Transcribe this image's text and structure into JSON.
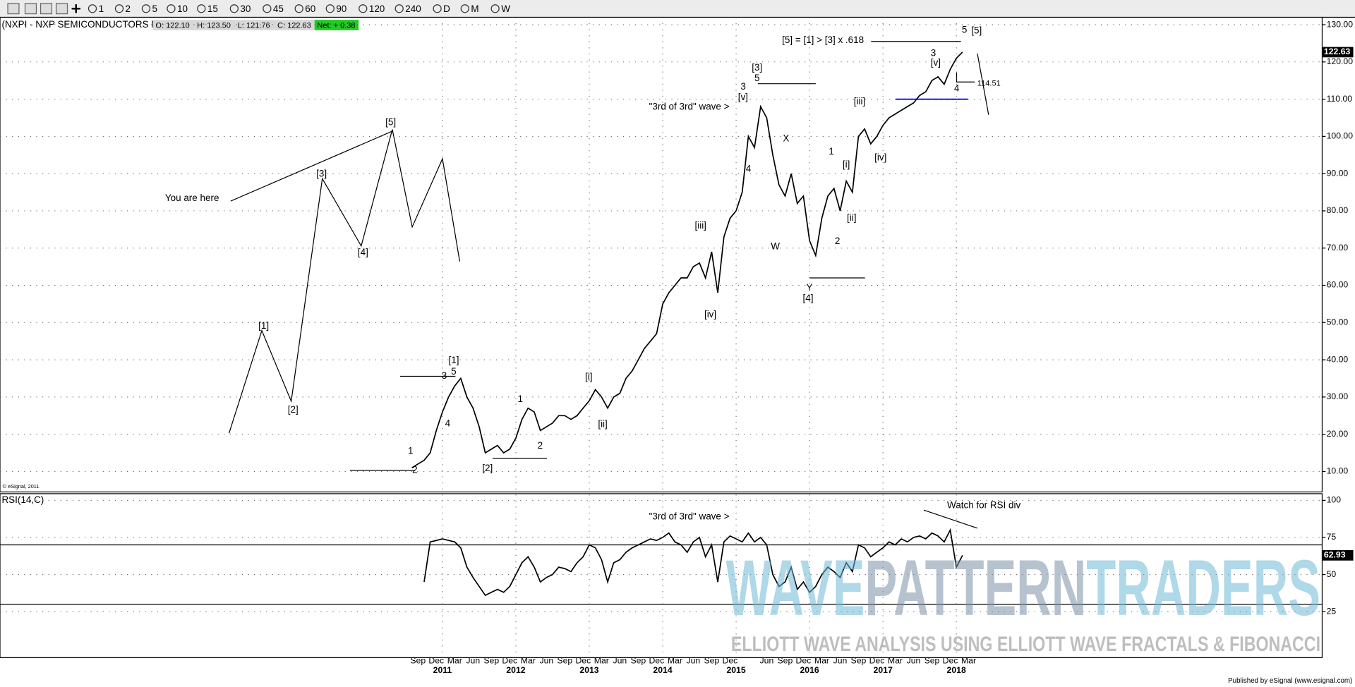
{
  "toolbar": {
    "intervals": [
      "1",
      "2",
      "5",
      "10",
      "15",
      "30",
      "45",
      "60",
      "90",
      "120",
      "240",
      "D",
      "M",
      "W"
    ]
  },
  "chart_data": [
    {
      "type": "line",
      "title": "(NXPI - NXP SEMICONDUCTORS N",
      "quote": [
        "O: 122.10",
        "H: 123.50",
        "L: 121.76",
        "C: 122.63"
      ],
      "net": "Net: + 0.38",
      "copyright": "© eSignal, 2011",
      "x": [
        "2010-08",
        "2010-09",
        "2010-10",
        "2010-11",
        "2010-12",
        "2011-01",
        "2011-02",
        "2011-03",
        "2011-04",
        "2011-05",
        "2011-06",
        "2011-07",
        "2011-08",
        "2011-09",
        "2011-10",
        "2011-11",
        "2011-12",
        "2012-01",
        "2012-02",
        "2012-03",
        "2012-04",
        "2012-05",
        "2012-06",
        "2012-07",
        "2012-08",
        "2012-09",
        "2012-10",
        "2012-11",
        "2012-12",
        "2013-01",
        "2013-02",
        "2013-03",
        "2013-04",
        "2013-05",
        "2013-06",
        "2013-07",
        "2013-08",
        "2013-09",
        "2013-10",
        "2013-11",
        "2013-12",
        "2014-01",
        "2014-02",
        "2014-03",
        "2014-04",
        "2014-05",
        "2014-06",
        "2014-07",
        "2014-08",
        "2014-09",
        "2014-10",
        "2014-11",
        "2014-12",
        "2015-01",
        "2015-02",
        "2015-03",
        "2015-04",
        "2015-05",
        "2015-06",
        "2015-07",
        "2015-08",
        "2015-09",
        "2015-10",
        "2015-11",
        "2015-12",
        "2016-01",
        "2016-02",
        "2016-03",
        "2016-04",
        "2016-05",
        "2016-06",
        "2016-07",
        "2016-08",
        "2016-09",
        "2016-10",
        "2016-11",
        "2016-12",
        "2017-01",
        "2017-02",
        "2017-03",
        "2017-04",
        "2017-05",
        "2017-06",
        "2017-07",
        "2017-08",
        "2017-09",
        "2017-10",
        "2017-11",
        "2017-12",
        "2018-01",
        "2018-02"
      ],
      "values": [
        11,
        12,
        13,
        15,
        21,
        26,
        30,
        33,
        35,
        30,
        27,
        22,
        15,
        16,
        17,
        15,
        16,
        19,
        24,
        27,
        26,
        21,
        22,
        23,
        25,
        25,
        24,
        25,
        27,
        29,
        32,
        30,
        27,
        30,
        31,
        35,
        37,
        40,
        43,
        45,
        47,
        55,
        58,
        60,
        62,
        62,
        65,
        66,
        62,
        69,
        58,
        73,
        78,
        80,
        85,
        100,
        97,
        108,
        105,
        95,
        87,
        84,
        90,
        82,
        84,
        72,
        68,
        78,
        84,
        86,
        80,
        88,
        85,
        100,
        102,
        98,
        100,
        103,
        105,
        106,
        107,
        108,
        109,
        111,
        112,
        115,
        116,
        114,
        118,
        121,
        122.63
      ],
      "color": "#000000",
      "last_label": "122.63",
      "ylim": [
        4.5,
        132
      ],
      "yticks": [
        {
          "value": 130,
          "label": "130.00"
        },
        {
          "value": 120,
          "label": "120.00"
        },
        {
          "value": 110,
          "label": "110.00"
        },
        {
          "value": 100,
          "label": "100.00"
        },
        {
          "value": 90,
          "label": "90.00"
        },
        {
          "value": 80,
          "label": "80.00"
        },
        {
          "value": 70,
          "label": "70.00"
        },
        {
          "value": 60,
          "label": "60.00"
        },
        {
          "value": 50,
          "label": "50.00"
        },
        {
          "value": 40,
          "label": "40.00"
        },
        {
          "value": 30,
          "label": "30.00"
        },
        {
          "value": 20,
          "label": "20.00"
        },
        {
          "value": 10,
          "label": "10.00"
        }
      ],
      "grid": true,
      "target_label": "114.51",
      "annotations": [
        "[5] = [1] > [3] x .618",
        "5",
        "[5]",
        "3",
        "[v]",
        "4",
        "[iii]",
        "[iv]",
        "[i]",
        "[ii]",
        "1",
        "2",
        "X",
        "W",
        "Y",
        "[4]",
        "[3]",
        "5",
        "3",
        "[v]",
        "4",
        "\"3rd of 3rd\" wave >",
        "[iii]",
        "[iv]",
        "[i]",
        "[ii]",
        "1",
        "2",
        "[1]",
        "5",
        "3",
        "4",
        "1",
        "2",
        "[2]",
        "[5]",
        "[3]",
        "[4]",
        "[1]",
        "[2]",
        "You are here"
      ]
    },
    {
      "type": "line",
      "title": "RSI(14,C)",
      "x": [
        "2010-08",
        "2010-09",
        "2010-10",
        "2010-11",
        "2010-12",
        "2011-01",
        "2011-02",
        "2011-03",
        "2011-04",
        "2011-05",
        "2011-06",
        "2011-07",
        "2011-08",
        "2011-09",
        "2011-10",
        "2011-11",
        "2011-12",
        "2012-01",
        "2012-02",
        "2012-03",
        "2012-04",
        "2012-05",
        "2012-06",
        "2012-07",
        "2012-08",
        "2012-09",
        "2012-10",
        "2012-11",
        "2012-12",
        "2013-01",
        "2013-02",
        "2013-03",
        "2013-04",
        "2013-05",
        "2013-06",
        "2013-07",
        "2013-08",
        "2013-09",
        "2013-10",
        "2013-11",
        "2013-12",
        "2014-01",
        "2014-02",
        "2014-03",
        "2014-04",
        "2014-05",
        "2014-06",
        "2014-07",
        "2014-08",
        "2014-09",
        "2014-10",
        "2014-11",
        "2014-12",
        "2015-01",
        "2015-02",
        "2015-03",
        "2015-04",
        "2015-05",
        "2015-06",
        "2015-07",
        "2015-08",
        "2015-09",
        "2015-10",
        "2015-11",
        "2015-12",
        "2016-01",
        "2016-02",
        "2016-03",
        "2016-04",
        "2016-05",
        "2016-06",
        "2016-07",
        "2016-08",
        "2016-09",
        "2016-10",
        "2016-11",
        "2016-12",
        "2017-01",
        "2017-02",
        "2017-03",
        "2017-04",
        "2017-05",
        "2017-06",
        "2017-07",
        "2017-08",
        "2017-09",
        "2017-10",
        "2017-11",
        "2017-12",
        "2018-01",
        "2018-02"
      ],
      "values": [
        null,
        null,
        45,
        72,
        73,
        74,
        73,
        72,
        68,
        55,
        48,
        42,
        36,
        38,
        40,
        38,
        42,
        50,
        58,
        62,
        55,
        45,
        48,
        50,
        55,
        54,
        52,
        58,
        62,
        70,
        68,
        60,
        45,
        58,
        60,
        65,
        68,
        70,
        72,
        74,
        73,
        75,
        78,
        72,
        70,
        65,
        72,
        75,
        62,
        70,
        45,
        72,
        76,
        74,
        72,
        78,
        72,
        75,
        70,
        50,
        42,
        45,
        55,
        40,
        45,
        38,
        42,
        50,
        55,
        52,
        48,
        58,
        52,
        70,
        68,
        62,
        65,
        68,
        72,
        70,
        74,
        72,
        75,
        76,
        74,
        78,
        76,
        72,
        80,
        55,
        62.93
      ],
      "color": "#000000",
      "last_label": "62.93",
      "ylim": [
        -6,
        104.5
      ],
      "yticks": [
        100,
        75,
        50,
        25
      ],
      "levels": [
        70,
        30
      ],
      "grid": true,
      "annotations": [
        "\"3rd of 3rd\" wave >",
        "Watch for RSI div"
      ],
      "xticks": [
        {
          "value": "2010-09",
          "label": "Sep"
        },
        {
          "value": "2010-12",
          "label": "Dec"
        },
        {
          "value": "2011-03",
          "label": "Mar"
        },
        {
          "value": "2011-06",
          "label": "Jun"
        },
        {
          "value": "2011-09",
          "label": "Sep"
        },
        {
          "value": "2011-12",
          "label": "Dec"
        },
        {
          "value": "2012-03",
          "label": "Mar"
        },
        {
          "value": "2012-06",
          "label": "Jun"
        },
        {
          "value": "2012-09",
          "label": "Sep"
        },
        {
          "value": "2012-12",
          "label": "Dec"
        },
        {
          "value": "2013-03",
          "label": "Mar"
        },
        {
          "value": "2013-06",
          "label": "Jun"
        },
        {
          "value": "2013-09",
          "label": "Sep"
        },
        {
          "value": "2013-12",
          "label": "Dec"
        },
        {
          "value": "2014-03",
          "label": "Mar"
        },
        {
          "value": "2014-06",
          "label": "Jun"
        },
        {
          "value": "2014-09",
          "label": "Sep"
        },
        {
          "value": "2014-12",
          "label": "Dec"
        },
        {
          "value": "2015-06",
          "label": "Jun"
        },
        {
          "value": "2015-09",
          "label": "Sep"
        },
        {
          "value": "2015-12",
          "label": "Dec"
        },
        {
          "value": "2016-03",
          "label": "Mar"
        },
        {
          "value": "2016-06",
          "label": "Jun"
        },
        {
          "value": "2016-09",
          "label": "Sep"
        },
        {
          "value": "2016-12",
          "label": "Dec"
        },
        {
          "value": "2017-03",
          "label": "Mar"
        },
        {
          "value": "2017-06",
          "label": "Jun"
        },
        {
          "value": "2017-09",
          "label": "Sep"
        },
        {
          "value": "2017-12",
          "label": "Dec"
        },
        {
          "value": "2018-03",
          "label": "Mar"
        }
      ],
      "year_ticks": [
        {
          "value": "2011-01",
          "label": "2011"
        },
        {
          "value": "2012-01",
          "label": "2012"
        },
        {
          "value": "2013-01",
          "label": "2013"
        },
        {
          "value": "2014-01",
          "label": "2014"
        },
        {
          "value": "2015-01",
          "label": "2015"
        },
        {
          "value": "2016-01",
          "label": "2016"
        },
        {
          "value": "2017-01",
          "label": "2017"
        },
        {
          "value": "2018-01",
          "label": "2018"
        }
      ]
    }
  ],
  "watermark": {
    "title": [
      "WAVE",
      "PATTERN",
      "TRADERS"
    ],
    "subtitle": "ELLIOTT WAVE ANALYSIS USING ELLIOTT WAVE FRACTALS & FIBONACCI"
  },
  "footer": "Published by eSignal (www.esignal.com)"
}
